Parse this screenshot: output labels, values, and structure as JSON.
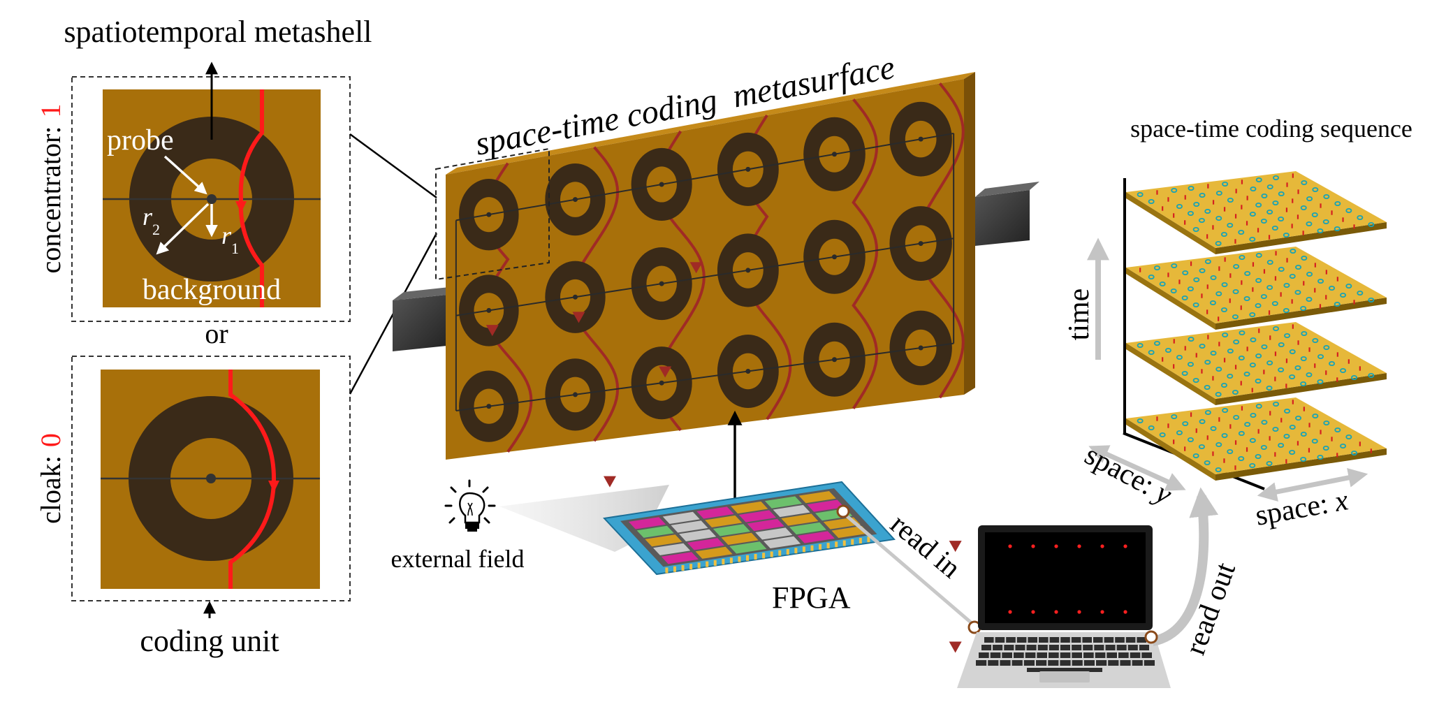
{
  "left_panel": {
    "title": "spatiotemporal metashell",
    "top_unit": {
      "side_label": "concentrator:",
      "side_value": "1",
      "probe_label": "probe",
      "r2_label": "r",
      "r2_sub": "2",
      "r1_label": "r",
      "r1_sub": "1",
      "background_label": "background"
    },
    "or_label": "or",
    "bottom_unit": {
      "side_label": "cloak:",
      "side_value": "0"
    },
    "bottom_caption": "coding unit"
  },
  "metasurface": {
    "title_part1": "space-time coding",
    "title_part2": "metasurface"
  },
  "external_field_label": "external field",
  "fpga_label": "FPGA",
  "read_in_label": "read in",
  "read_out_label": "read out",
  "sequence": {
    "title": "space-time coding sequence",
    "time_label": "time",
    "space_y_label": "space:",
    "space_y_var": "y",
    "space_x_label": "space:",
    "space_x_var": "x",
    "layer_bits": [
      [
        "0",
        "1",
        "0",
        "0",
        "1",
        "0",
        "1",
        "0",
        "0",
        "1",
        "0",
        "1",
        "1",
        "0",
        "0",
        "1",
        "0",
        "0",
        "1",
        "0",
        "1",
        "0",
        "0",
        "1",
        "0",
        "1",
        "0",
        "0",
        "1",
        "0",
        "1",
        "0",
        "0",
        "1",
        "1",
        "0",
        "0",
        "1",
        "0",
        "0",
        "1",
        "0",
        "0",
        "1",
        "0",
        "0",
        "1",
        "0",
        "1",
        "0",
        "0",
        "1",
        "0",
        "1",
        "0",
        "0",
        "1",
        "0",
        "1",
        "0",
        "1",
        "0",
        "0",
        "1",
        "0",
        "1",
        "0",
        "0",
        "1",
        "0",
        "0",
        "1",
        "0",
        "1",
        "0",
        "1",
        "0",
        "0",
        "1",
        "0"
      ],
      [
        "1",
        "0",
        "0",
        "1",
        "0",
        "1",
        "0",
        "0",
        "1",
        "0",
        "0",
        "1",
        "0",
        "0",
        "1",
        "0",
        "1",
        "0",
        "1",
        "0",
        "0",
        "1",
        "0",
        "0",
        "1",
        "0",
        "1",
        "0",
        "0",
        "1",
        "0",
        "0",
        "1",
        "0",
        "1",
        "0",
        "1",
        "0",
        "0",
        "1",
        "0",
        "1",
        "0",
        "0",
        "1",
        "0",
        "0",
        "1",
        "0",
        "1",
        "0",
        "0",
        "1",
        "0",
        "0",
        "1",
        "0",
        "1",
        "0",
        "0",
        "1",
        "0",
        "1",
        "0",
        "0",
        "1",
        "0",
        "1",
        "0",
        "0",
        "1",
        "0",
        "0",
        "1",
        "0",
        "0",
        "1",
        "0",
        "1",
        "0"
      ],
      [
        "0",
        "0",
        "1",
        "0",
        "1",
        "0",
        "0",
        "1",
        "0",
        "1",
        "0",
        "0",
        "1",
        "0",
        "1",
        "0",
        "0",
        "1",
        "0",
        "0",
        "1",
        "0",
        "1",
        "0",
        "0",
        "1",
        "0",
        "0",
        "1",
        "0",
        "1",
        "0",
        "0",
        "1",
        "0",
        "0",
        "1",
        "0",
        "1",
        "0",
        "0",
        "1",
        "0",
        "1",
        "0",
        "0",
        "1",
        "0",
        "0",
        "1",
        "0",
        "1",
        "0",
        "0",
        "1",
        "0",
        "0",
        "1",
        "0",
        "1",
        "0",
        "0",
        "1",
        "0",
        "1",
        "0",
        "0",
        "1",
        "0",
        "1",
        "0",
        "0",
        "1",
        "0",
        "1",
        "0",
        "0",
        "1",
        "0",
        "0"
      ],
      [
        "0",
        "1",
        "0",
        "1",
        "0",
        "0",
        "1",
        "0",
        "0",
        "1",
        "0",
        "1",
        "0",
        "0",
        "1",
        "0",
        "0",
        "1",
        "0",
        "1",
        "0",
        "0",
        "1",
        "0",
        "1",
        "0",
        "0",
        "1",
        "0",
        "0",
        "1",
        "0",
        "1",
        "0",
        "0",
        "1",
        "0",
        "0",
        "1",
        "0",
        "1",
        "0",
        "0",
        "1",
        "0",
        "1",
        "0",
        "0",
        "1",
        "0",
        "0",
        "1",
        "0",
        "1",
        "0",
        "0",
        "1",
        "0",
        "1",
        "0",
        "0",
        "1",
        "0",
        "0",
        "1",
        "0",
        "1",
        "0",
        "0",
        "1",
        "0",
        "1",
        "0",
        "0",
        "1",
        "0",
        "0",
        "1",
        "0",
        "1"
      ]
    ]
  },
  "colors": {
    "substrate": "#a8700a",
    "ring": "#3a2a18",
    "heat_line": "#ff1a1a",
    "dark_heat_line": "#a02a25",
    "layer_top": "#e6b83a",
    "bit_one": "#d42020",
    "bit_zero": "#17a3b6",
    "fpga_board": "#3ba3cf",
    "cell_magenta": "#d4269a",
    "cell_green": "#6cc06c",
    "cell_gray": "#c7c7c7",
    "cell_orange": "#d49a1c"
  }
}
